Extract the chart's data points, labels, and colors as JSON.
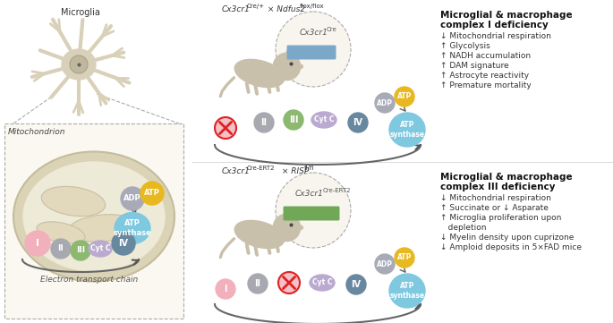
{
  "bg_color": "#ffffff",
  "complex_colors": {
    "I": "#f2b0bc",
    "II": "#a8a8b0",
    "III": "#8cb870",
    "CytC": "#bbaacf",
    "IV": "#6888a0",
    "ATP_synthase": "#7ec8e0",
    "ADP": "#a8aab8",
    "ATP": "#e8b820"
  },
  "top_panel": {
    "deficiency_title_line1": "Microglial & macrophage",
    "deficiency_title_line2": "complex I deficiency",
    "bullets": [
      "↓ Mitochondrial respiration",
      "↑ Glycolysis",
      "↑ NADH accumulation",
      "↑ DAM signature",
      "↑ Astrocyte reactivity",
      "↑ Premature mortality"
    ]
  },
  "bottom_panel": {
    "deficiency_title_line1": "Microglial & macrophage",
    "deficiency_title_line2": "complex III deficiency",
    "bullets": [
      "↓ Mitochondrial respiration",
      "↑ Succinate or ↓ Asparate",
      "↑ Microglia proliferation upon",
      "   depletion",
      "↓ Myelin density upon cuprizone",
      "↓ Amploid deposits in 5×FAD mice"
    ]
  }
}
